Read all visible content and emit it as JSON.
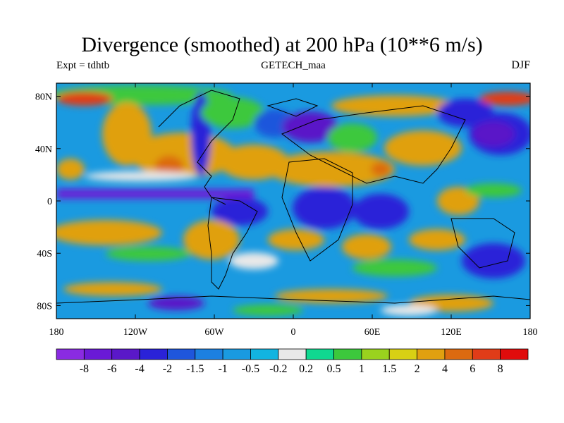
{
  "title": "Divergence (smoothed) at 200 hPa (10**6 m/s)",
  "experiment": "Expt = tdhtb",
  "model": "GETECH_maa",
  "season": "DJF",
  "map": {
    "x_range": [
      -180,
      180
    ],
    "y_range": [
      -90,
      90
    ],
    "y_ticks": [
      {
        "value": 80,
        "label": "80N"
      },
      {
        "value": 40,
        "label": "40N"
      },
      {
        "value": 0,
        "label": "0"
      },
      {
        "value": -40,
        "label": "40S"
      },
      {
        "value": -80,
        "label": "80S"
      }
    ],
    "x_ticks": [
      {
        "value": -180,
        "label": "180"
      },
      {
        "value": -120,
        "label": "120W"
      },
      {
        "value": -60,
        "label": "60W"
      },
      {
        "value": 0,
        "label": "0"
      },
      {
        "value": 60,
        "label": "60E"
      },
      {
        "value": 120,
        "label": "120E"
      },
      {
        "value": 180,
        "label": "180"
      }
    ]
  },
  "colorbar": {
    "colors": [
      "#8a2be2",
      "#6a1ad6",
      "#5a18c8",
      "#2a22d8",
      "#1f56dc",
      "#1c80e0",
      "#1a9ae0",
      "#12b4e0",
      "#e8e8e8",
      "#10d890",
      "#3cc83c",
      "#9ad21e",
      "#d8d014",
      "#e0a010",
      "#dc6a10",
      "#e03c18",
      "#e00c0c"
    ],
    "labels": [
      "-8",
      "-6",
      "-4",
      "-2",
      "-1.5",
      "-1",
      "-0.5",
      "-0.2",
      "0.2",
      "0.5",
      "1",
      "1.5",
      "2",
      "4",
      "6",
      "8"
    ]
  }
}
